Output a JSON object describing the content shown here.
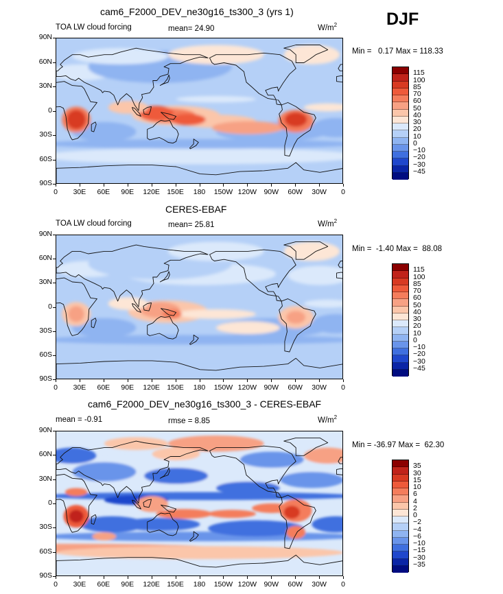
{
  "season": "DJF",
  "chart_data": [
    {
      "type": "heatmap",
      "title": "cam6_F2000_DEV_ne30g16_ts300_3 (yrs 1)",
      "field": "TOA LW cloud forcing",
      "stat1": "mean=   24.90",
      "units": "W/m",
      "units_sup": "2",
      "minmax": "Min =   0.17 Max = 118.33",
      "x_ticks": [
        "0",
        "30E",
        "60E",
        "90E",
        "120E",
        "150E",
        "180",
        "150W",
        "120W",
        "90W",
        "60W",
        "30W",
        "0"
      ],
      "y_ticks": [
        "90N",
        "60N",
        "30N",
        "0",
        "30S",
        "60S",
        "90S"
      ],
      "levels": [
        "115",
        "100",
        "85",
        "70",
        "60",
        "50",
        "40",
        "30",
        "20",
        "10",
        "0",
        "−10",
        "−20",
        "−30",
        "−45"
      ],
      "colors": [
        "#8b0000",
        "#c0231a",
        "#d83a22",
        "#ee5a3a",
        "#f47d5c",
        "#f7a184",
        "#fbc6aa",
        "#fde6d6",
        "#dbe9fb",
        "#b5d0f7",
        "#8fb4f1",
        "#6994ea",
        "#3f6fdf",
        "#1f47cc",
        "#0a25a6",
        "#000c80"
      ]
    },
    {
      "type": "heatmap",
      "title": "CERES-EBAF",
      "field": "TOA LW cloud forcing",
      "stat1": "mean=   25.81",
      "units": "W/m",
      "units_sup": "2",
      "minmax": "Min =  -1.40 Max =  88.08",
      "x_ticks": [
        "0",
        "30E",
        "60E",
        "90E",
        "120E",
        "150E",
        "180",
        "150W",
        "120W",
        "90W",
        "60W",
        "30W",
        "0"
      ],
      "y_ticks": [
        "90N",
        "60N",
        "30N",
        "0",
        "30S",
        "60S",
        "90S"
      ],
      "levels": [
        "115",
        "100",
        "85",
        "70",
        "60",
        "50",
        "40",
        "30",
        "20",
        "10",
        "0",
        "−10",
        "−20",
        "−30",
        "−45"
      ],
      "colors": [
        "#8b0000",
        "#c0231a",
        "#d83a22",
        "#ee5a3a",
        "#f47d5c",
        "#f7a184",
        "#fbc6aa",
        "#fde6d6",
        "#dbe9fb",
        "#b5d0f7",
        "#8fb4f1",
        "#6994ea",
        "#3f6fdf",
        "#1f47cc",
        "#0a25a6",
        "#000c80"
      ]
    },
    {
      "type": "heatmap",
      "title": "cam6_F2000_DEV_ne30g16_ts300_3 - CERES-EBAF",
      "field": "mean =   -0.91",
      "stat1": "rmse =    8.85",
      "units": "W/m",
      "units_sup": "2",
      "minmax": "Min = -36.97 Max =  62.30",
      "x_ticks": [
        "0",
        "30E",
        "60E",
        "90E",
        "120E",
        "150E",
        "180",
        "150W",
        "120W",
        "90W",
        "60W",
        "30W",
        "0"
      ],
      "y_ticks": [
        "90N",
        "60N",
        "30N",
        "0",
        "30S",
        "60S",
        "90S"
      ],
      "levels": [
        "35",
        "30",
        "15",
        "10",
        "6",
        "4",
        "2",
        "0",
        "−2",
        "−4",
        "−6",
        "−10",
        "−15",
        "−30",
        "−35"
      ],
      "colors": [
        "#8b0000",
        "#c0231a",
        "#d83a22",
        "#ee5a3a",
        "#f47d5c",
        "#f7a184",
        "#fbc6aa",
        "#fde6d6",
        "#dbe9fb",
        "#b5d0f7",
        "#8fb4f1",
        "#6994ea",
        "#3f6fdf",
        "#1f47cc",
        "#0a25a6",
        "#000c80"
      ]
    }
  ]
}
